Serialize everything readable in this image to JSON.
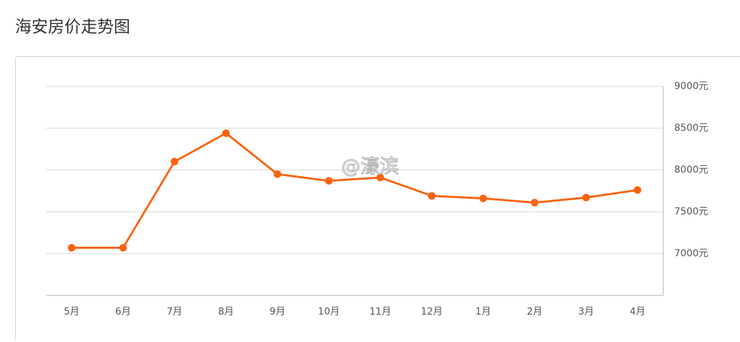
{
  "chart_data": {
    "type": "line",
    "title": "海安房价走势图",
    "categories": [
      "5月",
      "6月",
      "7月",
      "8月",
      "9月",
      "10月",
      "11月",
      "12月",
      "1月",
      "2月",
      "3月",
      "4月"
    ],
    "values": [
      7070,
      7070,
      8100,
      8440,
      7950,
      7870,
      7910,
      7690,
      7660,
      7610,
      7670,
      7760
    ],
    "color": "#fa6410",
    "ylim": [
      6500,
      9000
    ],
    "yticks": [
      {
        "value": 7000,
        "label": "7000元"
      },
      {
        "value": 7500,
        "label": "7500元"
      },
      {
        "value": 8000,
        "label": "8000元"
      },
      {
        "value": 8500,
        "label": "8500元"
      },
      {
        "value": 9000,
        "label": "9000元"
      }
    ],
    "grid": true,
    "y_axis_side": "right",
    "annotation": "@濠滨"
  }
}
